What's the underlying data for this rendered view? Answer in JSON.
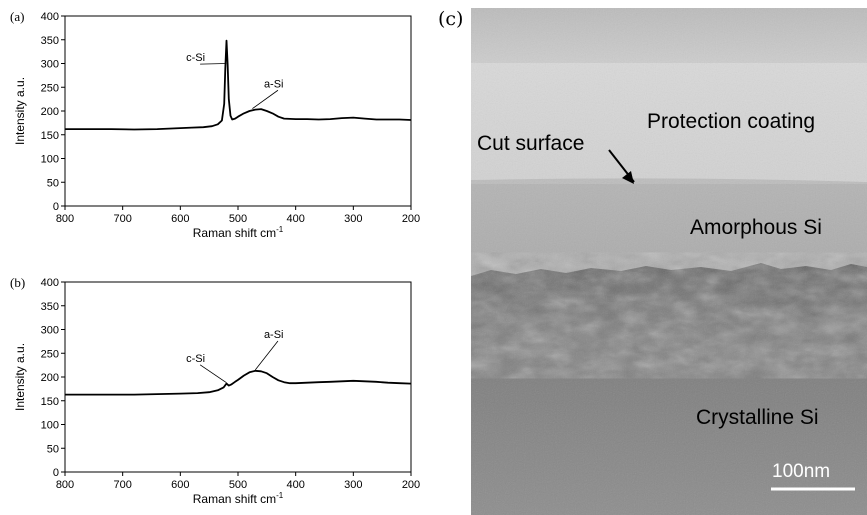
{
  "chart_data": [
    {
      "type": "line",
      "panel": "(a)",
      "xlabel": "Raman shift",
      "xunit": "cm",
      "xunit_exp": "-1",
      "ylabel": "Intensity  a.u.",
      "xlim": [
        800,
        200
      ],
      "ylim": [
        0,
        400
      ],
      "xticks": [
        800,
        700,
        600,
        500,
        400,
        300,
        200
      ],
      "yticks": [
        0,
        50,
        100,
        150,
        200,
        250,
        300,
        350,
        400
      ],
      "x": [
        800,
        760,
        720,
        680,
        640,
        600,
        580,
        560,
        545,
        535,
        528,
        524,
        522,
        520,
        518,
        516,
        513,
        510,
        505,
        500,
        490,
        480,
        470,
        460,
        450,
        440,
        430,
        420,
        400,
        380,
        360,
        340,
        320,
        300,
        280,
        260,
        240,
        220,
        200
      ],
      "y": [
        162,
        162,
        162,
        161,
        162,
        164,
        165,
        166,
        168,
        172,
        180,
        215,
        290,
        348,
        300,
        225,
        190,
        182,
        184,
        188,
        195,
        200,
        203,
        204,
        200,
        195,
        188,
        184,
        183,
        183,
        182,
        183,
        185,
        186,
        184,
        182,
        182,
        182,
        181
      ],
      "annotations": [
        {
          "text": "c-Si",
          "x": 590,
          "y": 305,
          "ax": 520,
          "ay": 300
        },
        {
          "text": "a-Si",
          "x": 455,
          "y": 250,
          "ax": 475,
          "ay": 205
        }
      ]
    },
    {
      "type": "line",
      "panel": "(b)",
      "xlabel": "Raman shift",
      "xunit": "cm",
      "xunit_exp": "-1",
      "ylabel": "Intensity  a.u.",
      "xlim": [
        800,
        200
      ],
      "ylim": [
        0,
        400
      ],
      "xticks": [
        800,
        700,
        600,
        500,
        400,
        300,
        200
      ],
      "yticks": [
        0,
        50,
        100,
        150,
        200,
        250,
        300,
        350,
        400
      ],
      "x": [
        800,
        760,
        720,
        680,
        640,
        600,
        570,
        550,
        535,
        525,
        520,
        516,
        512,
        505,
        500,
        490,
        480,
        470,
        460,
        450,
        440,
        430,
        420,
        410,
        400,
        380,
        360,
        340,
        320,
        300,
        280,
        260,
        240,
        220,
        200
      ],
      "y": [
        163,
        163,
        163,
        163,
        164,
        165,
        166,
        168,
        172,
        178,
        186,
        182,
        184,
        190,
        194,
        203,
        210,
        213,
        212,
        208,
        200,
        193,
        189,
        187,
        187,
        188,
        189,
        190,
        191,
        192,
        191,
        190,
        188,
        187,
        186
      ],
      "annotations": [
        {
          "text": "c-Si",
          "x": 590,
          "y": 232,
          "ax": 520,
          "ay": 188
        },
        {
          "text": "a-Si",
          "x": 455,
          "y": 282,
          "ax": 470,
          "ay": 215
        }
      ]
    }
  ],
  "tem": {
    "panel": "(c)",
    "labels": {
      "protection": "Protection coating",
      "cut": "Cut surface",
      "amorphous": "Amorphous Si",
      "crystalline": "Crystalline Si",
      "scale": "100nm"
    },
    "colors": {
      "top": "#bdbdbd",
      "coating": "#d6d6d6",
      "amorphous": "#b0b0b0",
      "crystalline": "#8a8a8a",
      "interface": "#3a3a3a"
    }
  }
}
